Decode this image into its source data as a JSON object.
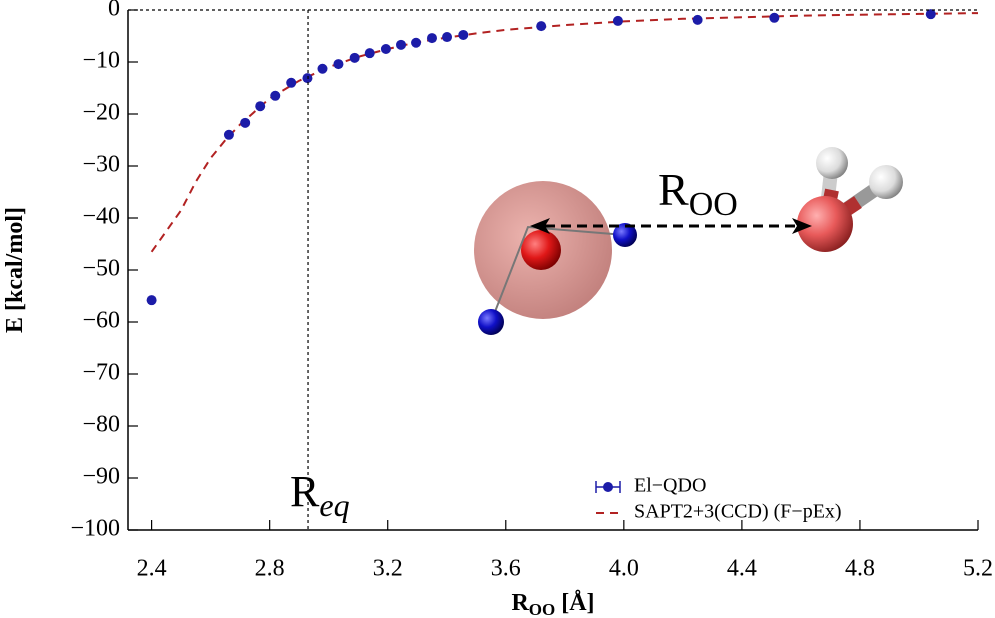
{
  "chart_data": {
    "type": "scatter",
    "y_label": "E [kcal/mol]",
    "x_label": {
      "main": "R",
      "sub": "OO",
      "unit": " [Å]"
    },
    "xlim": [
      2.32,
      5.2
    ],
    "ylim": [
      -100,
      0
    ],
    "xticks": [
      2.4,
      2.8,
      3.2,
      3.6,
      {
        "value": 4,
        "label": "4.0"
      },
      4.4,
      4.8,
      5.2
    ],
    "yticks": [
      0,
      {
        "value": -10,
        "label": "−10"
      },
      {
        "value": -20,
        "label": "−20"
      },
      {
        "value": -30,
        "label": "−30"
      },
      {
        "value": -40,
        "label": "−40"
      },
      {
        "value": -50,
        "label": "−50"
      },
      {
        "value": -60,
        "label": "−60"
      },
      {
        "value": -70,
        "label": "−70"
      },
      {
        "value": -80,
        "label": "−80"
      },
      {
        "value": -90,
        "label": "−90"
      },
      {
        "value": -100,
        "label": "−100"
      }
    ],
    "zero_line": 0,
    "req": 2.93,
    "req_label": {
      "main": "R",
      "sub": "eq"
    },
    "inset_label": {
      "main": "R",
      "sub": "OO"
    },
    "series": [
      {
        "name": "El−QDO",
        "color": "#1c1ca8",
        "style": "markers",
        "x": [
          2.4,
          2.662,
          2.717,
          2.768,
          2.819,
          2.873,
          2.928,
          2.979,
          3.033,
          3.088,
          3.139,
          3.194,
          3.245,
          3.296,
          3.35,
          3.401,
          3.456,
          3.72,
          3.98,
          4.25,
          4.51,
          5.04
        ],
        "values": [
          -55.8,
          -24.0,
          -21.7,
          -18.5,
          -16.5,
          -14.0,
          -13.1,
          -11.3,
          -10.4,
          -9.2,
          -8.3,
          -7.5,
          -6.7,
          -6.3,
          -5.4,
          -5.2,
          -4.8,
          -3.1,
          -2.1,
          -1.9,
          -1.5,
          -0.8
        ]
      },
      {
        "name": "SAPT2+3(CCD) (F−pEx)",
        "color": "#b22222",
        "style": "dashed",
        "x": [
          2.4,
          2.45,
          2.5,
          2.55,
          2.6,
          2.65,
          2.7,
          2.8,
          2.9,
          3.0,
          3.1,
          3.2,
          3.3,
          3.4,
          3.5,
          3.6,
          3.8,
          4.0,
          4.2,
          4.4,
          4.6,
          4.8,
          5.0,
          5.2
        ],
        "values": [
          -46.5,
          -42.5,
          -38.5,
          -33,
          -28.5,
          -25,
          -22,
          -17,
          -13.6,
          -11,
          -9,
          -7.5,
          -6.2,
          -5.3,
          -4.5,
          -3.8,
          -2.9,
          -2.2,
          -1.7,
          -1.4,
          -1.1,
          -0.9,
          -0.75,
          -0.6
        ]
      }
    ]
  }
}
